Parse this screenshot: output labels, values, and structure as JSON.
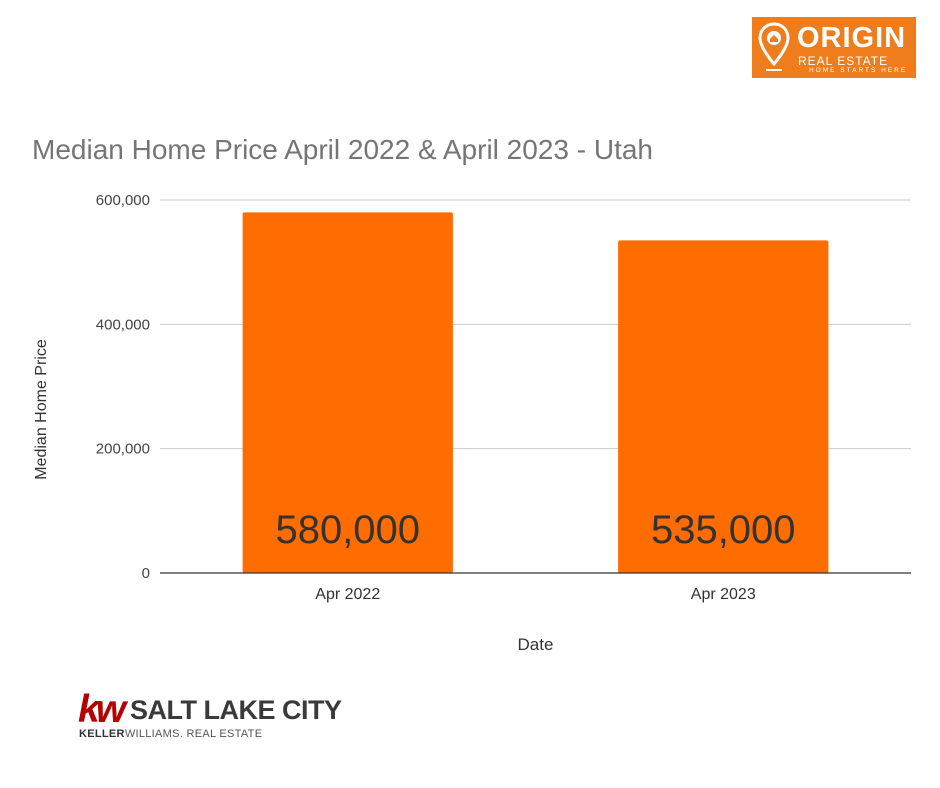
{
  "logos": {
    "origin": {
      "name": "ORIGIN",
      "line1": "REAL ESTATE",
      "line2": "HOME STARTS HERE",
      "color": "#f07d1b"
    },
    "kw": {
      "mark": "kw",
      "city": "SALT LAKE CITY",
      "brand_bold": "KELLER",
      "brand_rest": "WILLIAMS. REAL ESTATE",
      "color": "#b40101"
    }
  },
  "chart_data": {
    "type": "bar",
    "title": "Median Home Price April 2022 & April 2023 - Utah",
    "xlabel": "Date",
    "ylabel": "Median Home Price",
    "categories": [
      "Apr 2022",
      "Apr 2023"
    ],
    "values": [
      580000,
      535000
    ],
    "data_labels": [
      "580,000",
      "535,000"
    ],
    "ylim": [
      0,
      600000
    ],
    "yticks": [
      0,
      200000,
      400000,
      600000
    ],
    "ytick_labels": [
      "0",
      "200,000",
      "400,000",
      "600,000"
    ],
    "grid": true,
    "legend": "none",
    "bar_color": "#ff6d01"
  }
}
